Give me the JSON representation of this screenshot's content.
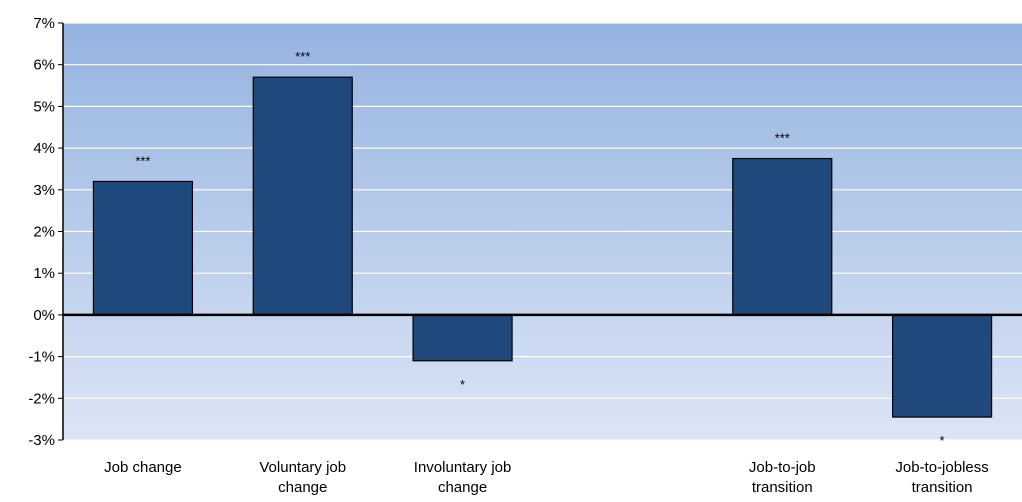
{
  "chart_data": {
    "type": "bar",
    "categories": [
      [
        "Job change"
      ],
      [
        "Voluntary job",
        "change"
      ],
      [
        "Involuntary job",
        "change"
      ],
      [],
      [
        "Job-to-job",
        "transition"
      ],
      [
        "Job-to-jobless",
        "transition"
      ]
    ],
    "values": [
      3.2,
      5.7,
      -1.1,
      null,
      3.75,
      -2.45
    ],
    "significance": [
      "***",
      "***",
      "*",
      "",
      "***",
      "*"
    ],
    "ylim": [
      -3,
      7
    ],
    "yticks": [
      -3,
      -2,
      -1,
      0,
      1,
      2,
      3,
      4,
      5,
      6,
      7
    ],
    "ytick_format": "percent",
    "grid": true,
    "legend": "none",
    "colors": {
      "bar_fill": "#1f497d",
      "bar_stroke": "#000000",
      "bg_top": "#95b3e0",
      "bg_bottom": "#dbe5f5",
      "gridline": "#ffffff",
      "zero_line": "#000000"
    }
  }
}
